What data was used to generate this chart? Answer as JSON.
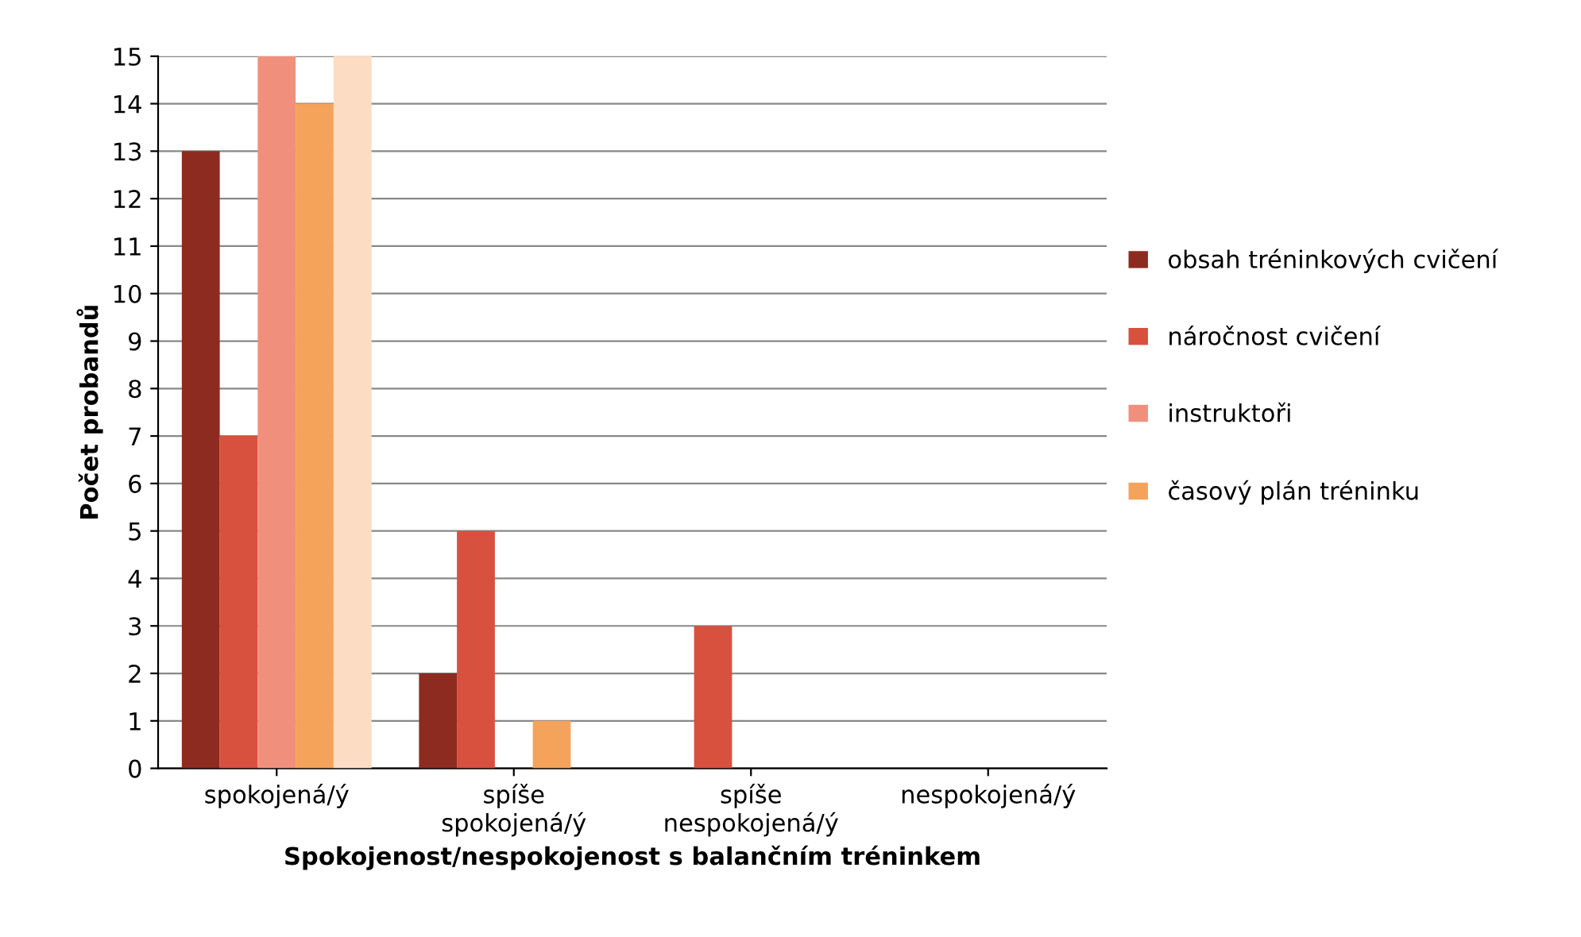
{
  "chart_data": {
    "type": "bar",
    "xlabel": "Spokojenost/nespokojenost s balančním tréninkem",
    "ylabel": "Počet probandů",
    "categories": [
      "spokojená/ý",
      "spíše\nspokojená/ý",
      "spíše\nnespokojená/ý",
      "nespokojená/ý"
    ],
    "series": [
      {
        "name": "obsah tréninkových cvičení",
        "color": "#8e2b20",
        "values": [
          13,
          2,
          0,
          0
        ]
      },
      {
        "name": "náročnost cvičení",
        "color": "#d8503e",
        "values": [
          7,
          5,
          3,
          0
        ]
      },
      {
        "name": "instruktoři",
        "color": "#f0907c",
        "values": [
          15,
          0,
          0,
          0
        ]
      },
      {
        "name": "časový plán tréninku",
        "color": "#f5a35a",
        "values": [
          14,
          1,
          0,
          0
        ]
      },
      {
        "color": "#fcdcc2",
        "values": [
          15,
          0,
          0,
          0
        ]
      }
    ],
    "ylim": [
      0,
      15
    ],
    "yticks": [
      0,
      1,
      2,
      3,
      4,
      5,
      6,
      7,
      8,
      9,
      10,
      11,
      12,
      13,
      14,
      15
    ],
    "grid": "y",
    "legend": "right"
  }
}
